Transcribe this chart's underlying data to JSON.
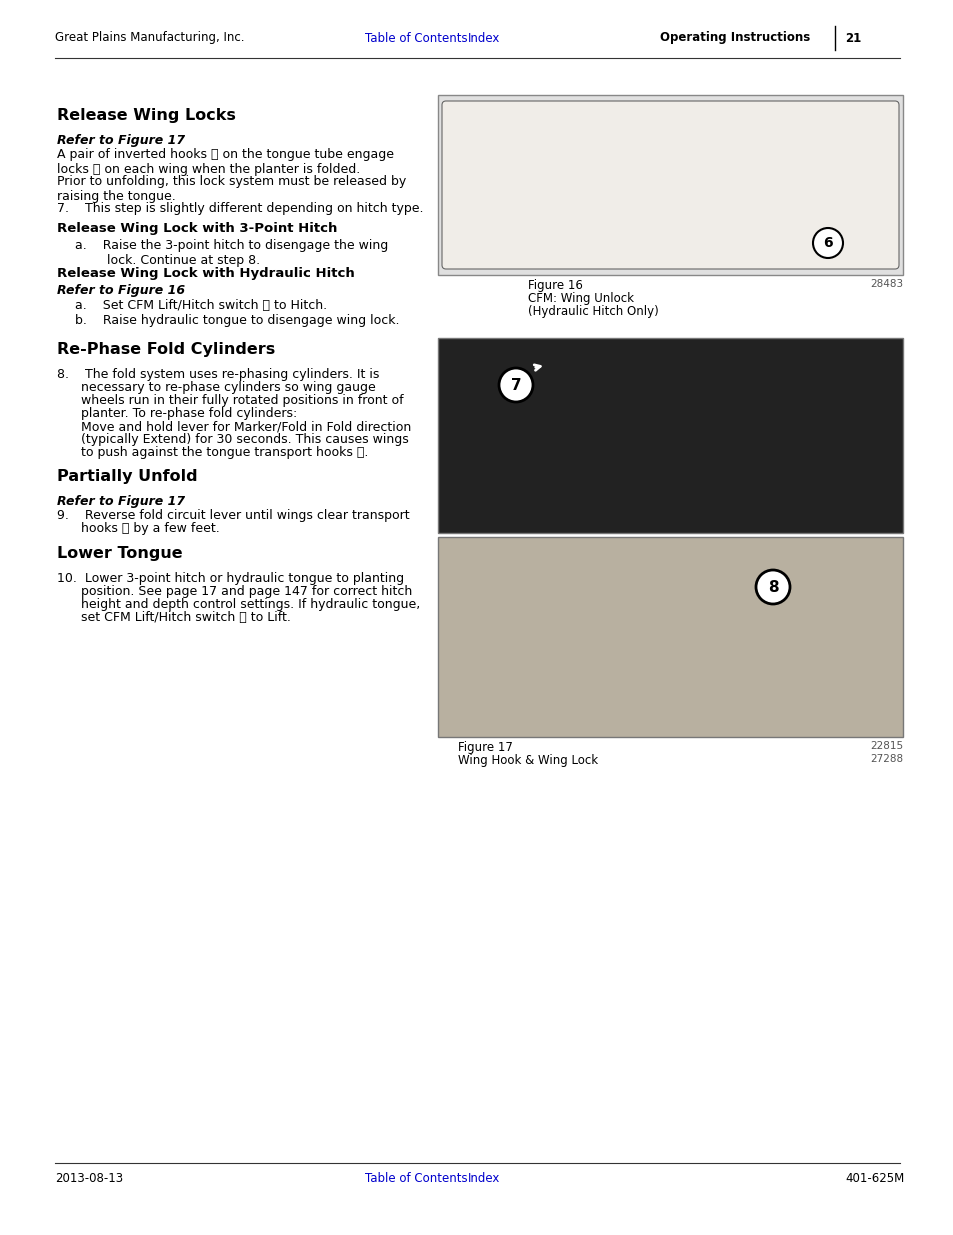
{
  "page_bg": "#ffffff",
  "header_left": "Great Plains Manufacturing, Inc.",
  "header_center_link1": "Table of Contents",
  "header_center_link2": "Index",
  "header_right": "Operating Instructions",
  "header_page": "21",
  "footer_left": "2013-08-13",
  "footer_center_link1": "Table of Contents",
  "footer_center_link2": "Index",
  "footer_right": "401-625M",
  "link_color": "#0000cc",
  "text_color": "#000000",
  "section1_title": "Release Wing Locks",
  "section1_ref": "Refer to Figure 17",
  "section1_para1": "A pair of inverted hooks ⓶ on the tongue tube engage\nlocks ⓷ on each wing when the planter is folded.",
  "section1_para2": "Prior to unfolding, this lock system must be released by\nraising the tongue.",
  "section1_item7": "7.    This step is slightly different depending on hitch type.",
  "section1_sub1_title": "Release Wing Lock with 3-Point Hitch",
  "section1_sub1_a": "a.    Raise the 3-point hitch to disengage the wing\n        lock. Continue at step 8.",
  "section1_sub2_title": "Release Wing Lock with Hydraulic Hitch",
  "section1_sub2_ref": "Refer to Figure 16",
  "section1_sub2_a": "a.    Set CFM Lift/Hitch switch ⓝ to Hitch.",
  "section1_sub2_b": "b.    Raise hydraulic tongue to disengage wing lock.",
  "section2_title": "Re-Phase Fold Cylinders",
  "section2_item8_l1": "8.    The fold system uses re-phasing cylinders. It is",
  "section2_item8_l2": "      necessary to re-phase cylinders so wing gauge",
  "section2_item8_l3": "      wheels run in their fully rotated positions in front of",
  "section2_item8_l4": "      planter. To re-phase fold cylinders:",
  "section2_item8_l5": "      Move and hold lever for Marker/Fold in Fold direction",
  "section2_item8_l6": "      (typically Extend) for 30 seconds. This causes wings",
  "section2_item8_l7": "      to push against the tongue transport hooks ⓶.",
  "section3_title": "Partially Unfold",
  "section3_ref": "Refer to Figure 17",
  "section3_item9_l1": "9.    Reverse fold circuit lever until wings clear transport",
  "section3_item9_l2": "      hooks ⓶ by a few feet.",
  "section4_title": "Lower Tongue",
  "section4_item10_l1": "10.  Lower 3-point hitch or hydraulic tongue to planting",
  "section4_item10_l2": "      position. See page 17 and page 147 for correct hitch",
  "section4_item10_l3": "      height and depth control settings. If hydraulic tongue,",
  "section4_item10_l4": "      set CFM Lift/Hitch switch ⓝ to Lift.",
  "fig16_cap1": "Figure 16",
  "fig16_cap2": "CFM: Wing Unlock",
  "fig16_cap3": "(Hydraulic Hitch Only)",
  "fig16_num": "28483",
  "fig17_cap1": "Figure 17",
  "fig17_cap2": "Wing Hook & Wing Lock",
  "fig17_num1": "22815",
  "fig17_num2": "27288",
  "fig16_box_color": "#e0e0e0",
  "fig17a_box_color": "#222222",
  "fig17b_box_color": "#b8b0a0"
}
